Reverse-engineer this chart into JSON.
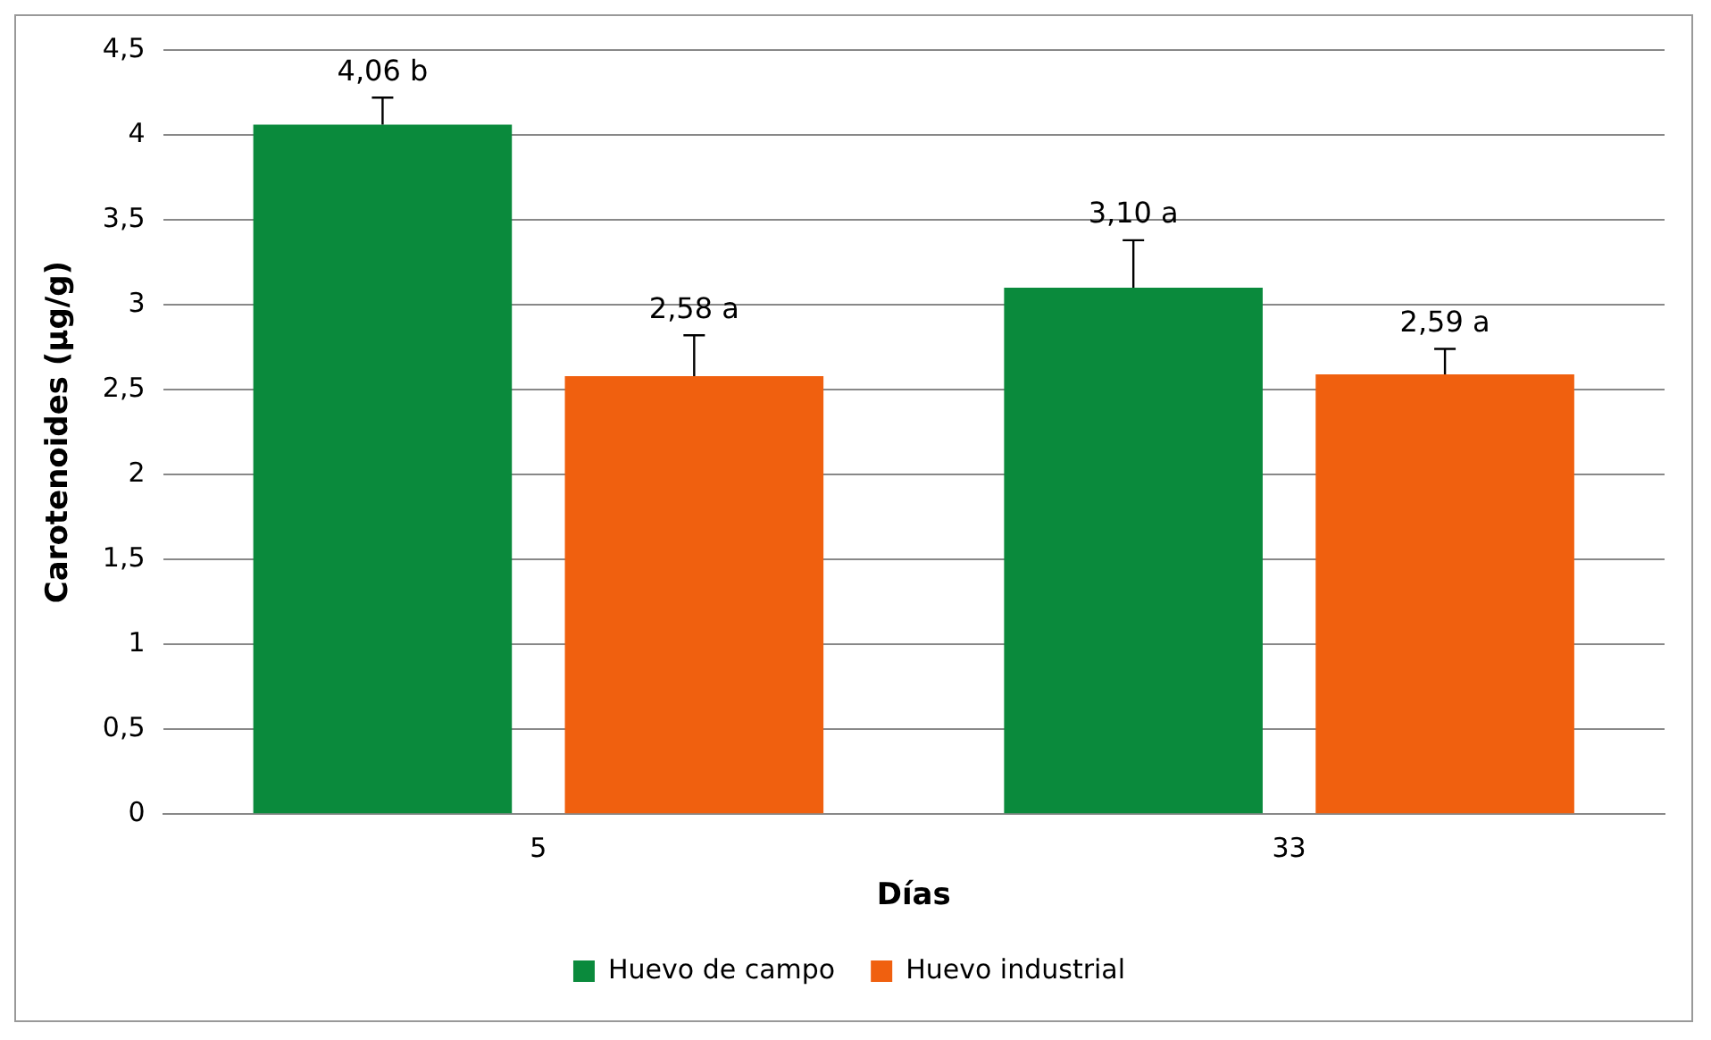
{
  "chart_data": {
    "type": "bar",
    "xlabel": "Días",
    "ylabel": "Carotenoides (µg/g)",
    "categories": [
      "5",
      "33"
    ],
    "series": [
      {
        "name": "Huevo de campo",
        "color": "#0a8a3c",
        "values": [
          4.06,
          3.1
        ],
        "errors": [
          [
            4.06,
            4.22
          ],
          [
            3.1,
            3.38
          ]
        ],
        "value_labels": [
          "4,06 b",
          "3,10 a"
        ]
      },
      {
        "name": "Huevo industrial",
        "color": "#f0600f",
        "values": [
          2.58,
          2.59
        ],
        "errors": [
          [
            2.58,
            2.82
          ],
          [
            2.59,
            2.74
          ]
        ],
        "value_labels": [
          "2,58 a",
          "2,59 a"
        ]
      }
    ],
    "ylim": [
      0,
      4.5
    ],
    "yticks": [
      0,
      {
        "value": 0.5,
        "label": "0,5"
      },
      1,
      {
        "value": 1.5,
        "label": "1,5"
      },
      2,
      {
        "value": 2.5,
        "label": "2,5"
      },
      3,
      {
        "value": 3.5,
        "label": "3,5"
      },
      4,
      {
        "value": 4.5,
        "label": "4,5"
      }
    ],
    "grid": "y",
    "legend": "bottom"
  }
}
